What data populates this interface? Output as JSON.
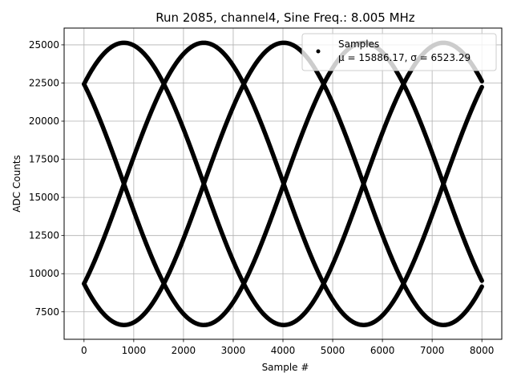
{
  "chart_data": {
    "type": "scatter",
    "title": "Run 2085, channel4, Sine Freq.: 8.005 MHz",
    "xlabel": "Sample #",
    "ylabel": "ADC Counts",
    "xlim": [
      -400,
      8400
    ],
    "ylim": [
      5700,
      26100
    ],
    "xticks": [
      0,
      1000,
      2000,
      3000,
      4000,
      5000,
      6000,
      7000,
      8000
    ],
    "yticks": [
      7500,
      10000,
      12500,
      15000,
      17500,
      20000,
      22500,
      25000
    ],
    "xtick_labels": [
      "0",
      "1000",
      "2000",
      "3000",
      "4000",
      "5000",
      "6000",
      "7000",
      "8000"
    ],
    "ytick_labels": [
      "7500",
      "10000",
      "12500",
      "15000",
      "17500",
      "20000",
      "22500",
      "25000"
    ],
    "grid": true,
    "legend": {
      "placement": "top-right",
      "entry": "Samples",
      "stats": "μ = 15886.17, σ = 6523.29"
    },
    "series": [
      {
        "name": "Samples",
        "color": "#000000",
        "marker": "point",
        "n_samples": 8000,
        "signal_model": {
          "mean": 15886.17,
          "amplitude": 9250,
          "period_samples": 6424,
          "phase_branches_deg": [
            45,
            135,
            225,
            315
          ]
        }
      }
    ]
  }
}
